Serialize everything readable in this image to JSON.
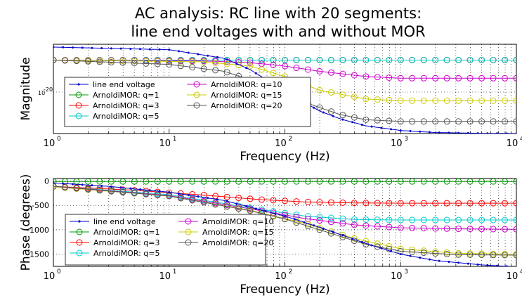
{
  "title": [
    "AC analysis: RC line with 20 segments:",
    "line end voltages with and without MOR"
  ],
  "chart_data": [
    {
      "type": "line",
      "xlabel": "Frequency (Hz)",
      "ylabel": "Magnitude",
      "xscale": "log",
      "yscale": "log",
      "xlim": [
        1,
        10000
      ],
      "grid": true,
      "legend_position": "bottom-left",
      "x_ticks": [
        {
          "base": "10",
          "exp": "0",
          "v": 1
        },
        {
          "base": "10",
          "exp": "1",
          "v": 10
        },
        {
          "base": "10",
          "exp": "2",
          "v": 100
        },
        {
          "base": "10",
          "exp": "3",
          "v": 1000
        },
        {
          "base": "10",
          "exp": "4",
          "v": 10000
        }
      ],
      "y_ticks": [
        {
          "label": "10",
          "exp": "-20",
          "v": -20
        }
      ],
      "series": [
        {
          "name": "line end voltage",
          "color": "#0000cc",
          "marker": "dot",
          "x": [
            1,
            10,
            30,
            50,
            100,
            200,
            300,
            500,
            1000,
            2000,
            5000,
            10000
          ],
          "y": [
            1,
            0.97,
            0.87,
            0.74,
            0.49,
            0.26,
            0.17,
            0.09,
            0.035,
            0.012,
            0.0025,
            0.0006
          ]
        },
        {
          "name": "ArnoldiMOR: q=1",
          "color": "#009900",
          "marker": "circle",
          "x": [
            1,
            10000
          ],
          "y": [
            0.85,
            0.85
          ]
        },
        {
          "name": "ArnoldiMOR: q=3",
          "color": "#ff0000",
          "marker": "circle",
          "x": [
            1,
            10000
          ],
          "y": [
            0.85,
            0.85
          ]
        },
        {
          "name": "ArnoldiMOR: q=5",
          "color": "#00cccc",
          "marker": "circle",
          "x": [
            1,
            10000
          ],
          "y": [
            0.85,
            0.85
          ]
        },
        {
          "name": "ArnoldiMOR: q=10",
          "color": "#cc00cc",
          "marker": "circle",
          "x": [
            1,
            20,
            50,
            100,
            200,
            500,
            1000,
            10000
          ],
          "y": [
            0.85,
            0.84,
            0.82,
            0.78,
            0.72,
            0.66,
            0.64,
            0.64
          ]
        },
        {
          "name": "ArnoldiMOR: q=15",
          "color": "#cccc00",
          "marker": "circle",
          "x": [
            1,
            20,
            50,
            100,
            200,
            500,
            1000,
            10000
          ],
          "y": [
            0.85,
            0.83,
            0.78,
            0.66,
            0.5,
            0.4,
            0.38,
            0.38
          ]
        },
        {
          "name": "ArnoldiMOR: q=20",
          "color": "#555555",
          "marker": "circle",
          "x": [
            1,
            10,
            30,
            50,
            100,
            200,
            300,
            500,
            1000,
            10000
          ],
          "y": [
            0.85,
            0.8,
            0.72,
            0.62,
            0.45,
            0.3,
            0.22,
            0.16,
            0.14,
            0.14
          ]
        }
      ]
    },
    {
      "type": "line",
      "xlabel": "Frequency (Hz)",
      "ylabel": "Phase (degrees)",
      "xscale": "log",
      "xlim": [
        1,
        10000
      ],
      "ylim": [
        -1750,
        50
      ],
      "grid": true,
      "legend_position": "bottom-left",
      "x_ticks": [
        {
          "base": "10",
          "exp": "0",
          "v": 1
        },
        {
          "base": "10",
          "exp": "1",
          "v": 10
        },
        {
          "base": "10",
          "exp": "2",
          "v": 100
        },
        {
          "base": "10",
          "exp": "3",
          "v": 1000
        },
        {
          "base": "10",
          "exp": "4",
          "v": 10000
        }
      ],
      "y_ticks": [
        {
          "label": "0",
          "v": 0
        },
        {
          "label": "-500",
          "v": -500
        },
        {
          "label": "-1000",
          "v": -1000
        },
        {
          "label": "-1500",
          "v": -1500
        }
      ],
      "series": [
        {
          "name": "line end voltage",
          "color": "#0000cc",
          "marker": "dot",
          "x": [
            1,
            3,
            10,
            30,
            100,
            200,
            500,
            1000,
            2000,
            5000,
            10000
          ],
          "y": [
            -40,
            -110,
            -230,
            -400,
            -720,
            -950,
            -1280,
            -1500,
            -1630,
            -1720,
            -1760
          ]
        },
        {
          "name": "ArnoldiMOR: q=1",
          "color": "#009900",
          "marker": "circle",
          "x": [
            1,
            10000
          ],
          "y": [
            -10,
            -10
          ]
        },
        {
          "name": "ArnoldiMOR: q=3",
          "color": "#ff0000",
          "marker": "circle",
          "x": [
            1,
            5,
            20,
            60,
            150,
            400,
            1000,
            10000
          ],
          "y": [
            -110,
            -190,
            -290,
            -380,
            -430,
            -450,
            -455,
            -455
          ]
        },
        {
          "name": "ArnoldiMOR: q=5",
          "color": "#00cccc",
          "marker": "circle",
          "x": [
            1,
            10,
            50,
            150,
            400,
            1000,
            10000
          ],
          "y": [
            -110,
            -280,
            -550,
            -720,
            -790,
            -800,
            -800
          ]
        },
        {
          "name": "ArnoldiMOR: q=10",
          "color": "#cc00cc",
          "marker": "circle",
          "x": [
            1,
            10,
            50,
            150,
            400,
            1000,
            3000,
            10000
          ],
          "y": [
            -110,
            -300,
            -570,
            -770,
            -900,
            -960,
            -980,
            -990
          ]
        },
        {
          "name": "ArnoldiMOR: q=15",
          "color": "#cccc00",
          "marker": "circle",
          "x": [
            1,
            10,
            50,
            150,
            400,
            1000,
            3000,
            10000
          ],
          "y": [
            -120,
            -310,
            -600,
            -870,
            -1180,
            -1390,
            -1480,
            -1500
          ]
        },
        {
          "name": "ArnoldiMOR: q=20",
          "color": "#555555",
          "marker": "circle",
          "x": [
            1,
            10,
            50,
            100,
            200,
            500,
            1000,
            3000,
            10000
          ],
          "y": [
            -110,
            -310,
            -610,
            -780,
            -1000,
            -1300,
            -1440,
            -1510,
            -1520
          ]
        }
      ]
    }
  ]
}
